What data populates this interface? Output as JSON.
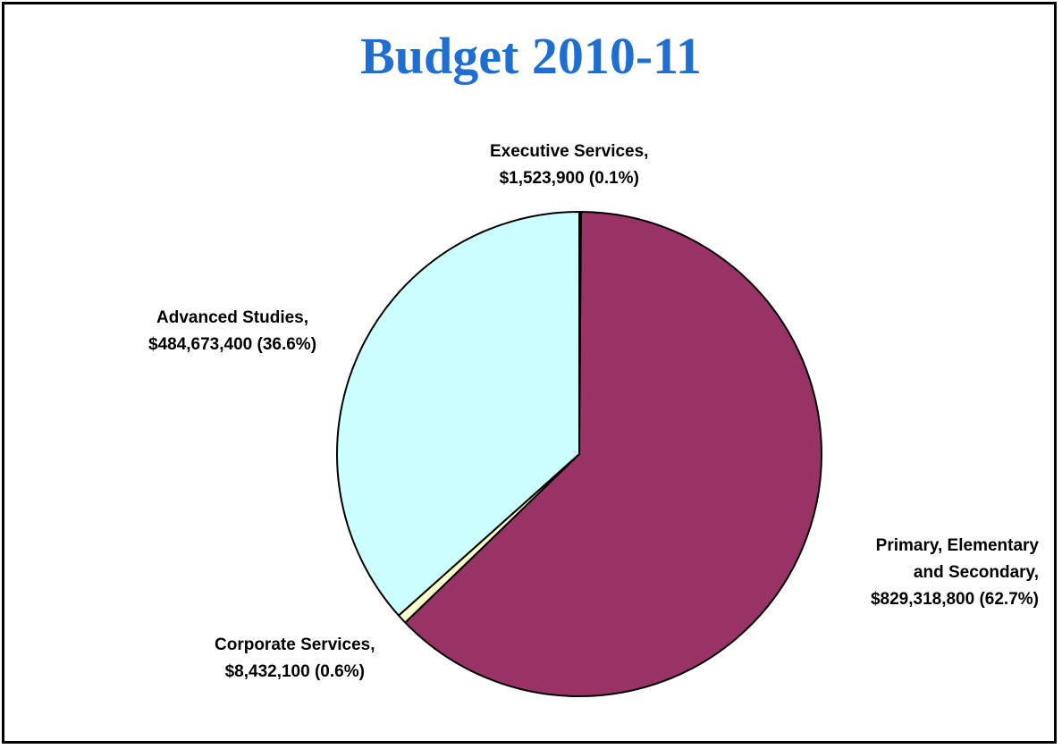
{
  "chart_data": {
    "type": "pie",
    "title": "Budget 2010-11",
    "slices": [
      {
        "name": "Executive Services",
        "value": 1523900,
        "percent": 0.1,
        "color": "#9999ff",
        "label_lines": [
          "Executive Services,",
          "$1,523,900 (0.1%)"
        ]
      },
      {
        "name": "Primary, Elementary and Secondary",
        "value": 829318800,
        "percent": 62.7,
        "color": "#993366",
        "label_lines": [
          "Primary, Elementary",
          "and Secondary,",
          "$829,318,800 (62.7%)"
        ]
      },
      {
        "name": "Corporate Services",
        "value": 8432100,
        "percent": 0.6,
        "color": "#ffffcc",
        "label_lines": [
          "Corporate Services,",
          "$8,432,100 (0.6%)"
        ]
      },
      {
        "name": "Advanced Studies",
        "value": 484673400,
        "percent": 36.6,
        "color": "#ccffff",
        "label_lines": [
          "Advanced Studies,",
          "$484,673,400 (36.6%)"
        ]
      }
    ],
    "legend": "none",
    "start": "top",
    "direction": "clockwise"
  }
}
